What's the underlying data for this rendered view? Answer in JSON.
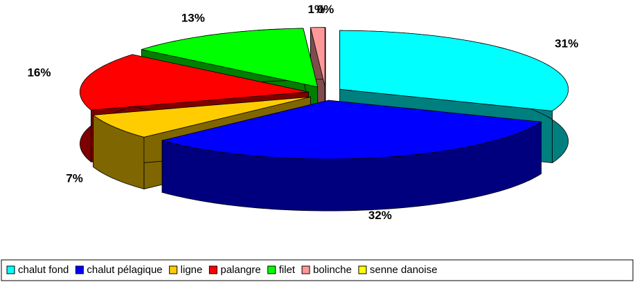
{
  "chart_data": {
    "type": "pie",
    "categories": [
      "chalut fond",
      "chalut pélagique",
      "ligne",
      "palangre",
      "filet",
      "bolinche",
      "senne danoise"
    ],
    "values": [
      31,
      32,
      7,
      16,
      13,
      1,
      0
    ],
    "value_labels": [
      "31%",
      "32%",
      "7%",
      "16%",
      "13%",
      "1%",
      "0%"
    ],
    "colors": [
      "#00ffff",
      "#0000ff",
      "#ffcc00",
      "#ff0000",
      "#00ff00",
      "#ff9999",
      "#ffff00"
    ],
    "legend": "bottom"
  }
}
